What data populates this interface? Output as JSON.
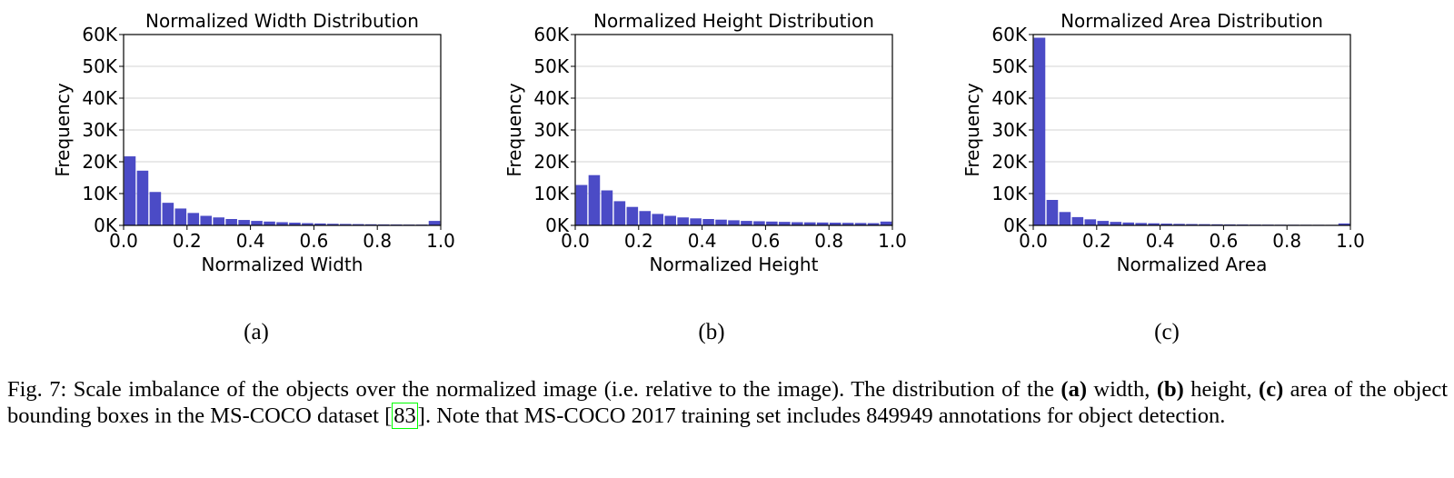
{
  "chart_data": [
    {
      "type": "bar",
      "title": "Normalized Width Distribution",
      "xlabel": "Normalized Width",
      "ylabel": "Frequency",
      "xlim": [
        0.0,
        1.0
      ],
      "ylim": [
        0,
        60000
      ],
      "xticks": [
        "0.0",
        "0.2",
        "0.4",
        "0.6",
        "0.8",
        "1.0"
      ],
      "yticks": [
        "0K",
        "10K",
        "20K",
        "30K",
        "40K",
        "50K",
        "60K"
      ],
      "bin_width": 0.04,
      "x": [
        0.02,
        0.06,
        0.1,
        0.14,
        0.18,
        0.22,
        0.26,
        0.3,
        0.34,
        0.38,
        0.42,
        0.46,
        0.5,
        0.54,
        0.58,
        0.62,
        0.66,
        0.7,
        0.74,
        0.78,
        0.82,
        0.86,
        0.9,
        0.94,
        0.98
      ],
      "values": [
        21700,
        17200,
        10500,
        7100,
        5300,
        3900,
        3000,
        2500,
        2000,
        1700,
        1400,
        1200,
        1000,
        850,
        700,
        600,
        500,
        450,
        400,
        350,
        300,
        280,
        250,
        250,
        1400
      ],
      "grid": true
    },
    {
      "type": "bar",
      "title": "Normalized Height Distribution",
      "xlabel": "Normalized Height",
      "ylabel": "Frequency",
      "xlim": [
        0.0,
        1.0
      ],
      "ylim": [
        0,
        60000
      ],
      "xticks": [
        "0.0",
        "0.2",
        "0.4",
        "0.6",
        "0.8",
        "1.0"
      ],
      "yticks": [
        "0K",
        "10K",
        "20K",
        "30K",
        "40K",
        "50K",
        "60K"
      ],
      "bin_width": 0.04,
      "x": [
        0.02,
        0.06,
        0.1,
        0.14,
        0.18,
        0.22,
        0.26,
        0.3,
        0.34,
        0.38,
        0.42,
        0.46,
        0.5,
        0.54,
        0.58,
        0.62,
        0.66,
        0.7,
        0.74,
        0.78,
        0.82,
        0.86,
        0.9,
        0.94,
        0.98
      ],
      "values": [
        12700,
        15800,
        11000,
        7600,
        5800,
        4500,
        3600,
        3000,
        2500,
        2200,
        2000,
        1800,
        1600,
        1400,
        1300,
        1200,
        1100,
        1000,
        950,
        900,
        850,
        800,
        750,
        700,
        1200
      ],
      "grid": true
    },
    {
      "type": "bar",
      "title": "Normalized Area Distribution",
      "xlabel": "Normalized Area",
      "ylabel": "Frequency",
      "xlim": [
        0.0,
        1.0
      ],
      "ylim": [
        0,
        60000
      ],
      "xticks": [
        "0.0",
        "0.2",
        "0.4",
        "0.6",
        "0.8",
        "1.0"
      ],
      "yticks": [
        "0K",
        "10K",
        "20K",
        "30K",
        "40K",
        "50K",
        "60K"
      ],
      "bin_width": 0.04,
      "x": [
        0.02,
        0.06,
        0.1,
        0.14,
        0.18,
        0.22,
        0.26,
        0.3,
        0.34,
        0.38,
        0.42,
        0.46,
        0.5,
        0.54,
        0.58,
        0.62,
        0.66,
        0.7,
        0.74,
        0.78,
        0.82,
        0.86,
        0.9,
        0.94,
        0.98
      ],
      "values": [
        59000,
        8000,
        4200,
        2600,
        1900,
        1400,
        1100,
        900,
        750,
        650,
        550,
        480,
        420,
        380,
        340,
        300,
        270,
        250,
        230,
        210,
        200,
        190,
        180,
        170,
        600
      ],
      "grid": true
    }
  ],
  "colors": {
    "bar": "#4b4bc6",
    "grid": "#d3d3d3"
  },
  "sublabels": [
    "(a)",
    "(b)",
    "(c)"
  ],
  "caption": {
    "prefix": "Fig. 7: Scale imbalance of the objects over the normalized image (i.e. relative to the image). The distribution of the ",
    "a": "(a)",
    "t1": " width, ",
    "b": "(b)",
    "t2": " height, ",
    "c": "(c)",
    "t3": " area of the object bounding boxes in the MS-COCO dataset [",
    "ref": "83",
    "t4": "]. Note that MS-COCO 2017 training set includes 849949 annotations for object detection."
  }
}
